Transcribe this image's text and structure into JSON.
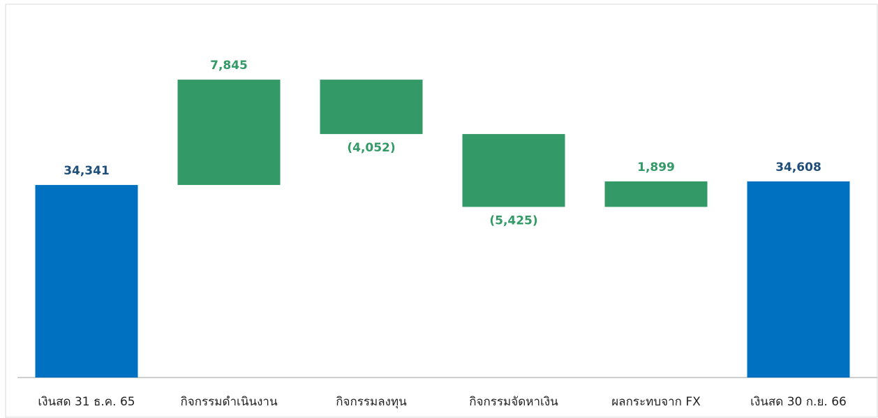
{
  "chart_data": {
    "type": "waterfall",
    "categories": [
      "เงินสด 31 ธ.ค. 65",
      "กิจกรรมดำเนินงาน",
      "กิจกรรมลงทุน",
      "กิจกรรมจัดหาเงิน",
      "ผลกระทบจาก FX",
      "เงินสด 30 ก.ย. 66"
    ],
    "values": [
      34341,
      7845,
      -4052,
      -5425,
      1899,
      34608
    ],
    "value_labels": [
      "34,341",
      "7,845",
      "(4,052)",
      "(5,425)",
      "1,899",
      "34,608"
    ],
    "totals": [
      true,
      false,
      false,
      false,
      false,
      true
    ],
    "total_color": "#0070c0",
    "color": "#339966",
    "total_label_color": "#1f4e79",
    "label_color": "#339966",
    "ylim": [
      20000,
      45000
    ]
  }
}
